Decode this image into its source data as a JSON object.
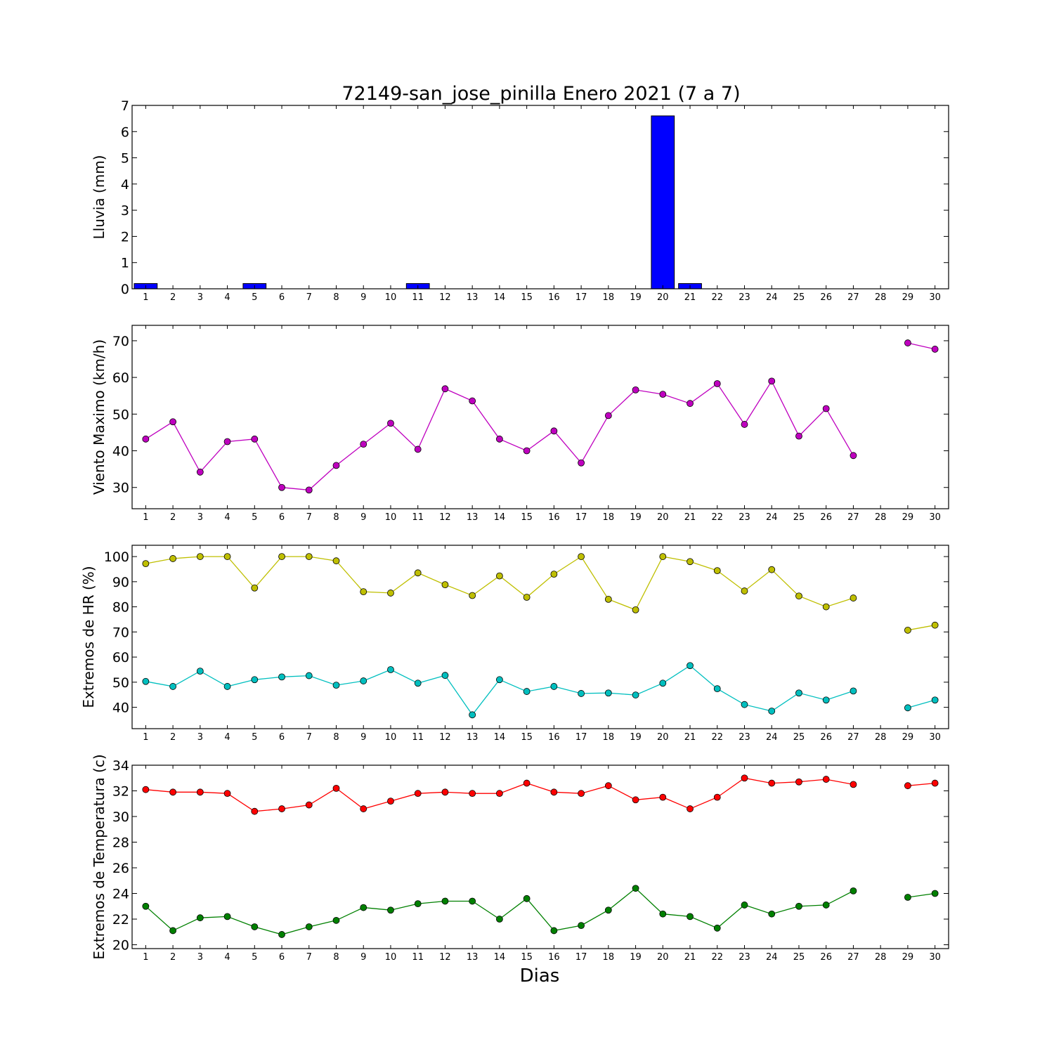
{
  "chart_data": {
    "title": "72149-san_jose_pinilla Enero 2021  (7 a 7)",
    "xlabel": "Dias",
    "days": [
      1,
      2,
      3,
      4,
      5,
      6,
      7,
      8,
      9,
      10,
      11,
      12,
      13,
      14,
      15,
      16,
      17,
      18,
      19,
      20,
      21,
      22,
      23,
      24,
      25,
      26,
      27,
      28,
      29,
      30
    ],
    "panels": [
      {
        "type": "bar",
        "ylabel": "Lluvia (mm)",
        "ylim": [
          0,
          7
        ],
        "yticks": [
          0,
          1,
          2,
          3,
          4,
          5,
          6,
          7
        ],
        "series": [
          {
            "color": "#0000ff",
            "values": [
              0.2,
              0,
              0,
              0,
              0.2,
              0,
              0,
              0,
              0,
              0,
              0.2,
              0,
              0,
              0,
              0,
              0,
              0,
              0,
              0,
              6.6,
              0.2,
              0,
              0,
              0,
              0,
              0,
              0,
              0,
              0,
              0
            ]
          }
        ]
      },
      {
        "type": "line",
        "ylabel": "Viento Maximo (km/h)",
        "ylim": [
          24.2,
          74.2
        ],
        "yticks": [
          30,
          40,
          50,
          60,
          70
        ],
        "series": [
          {
            "color": "#bf00bf",
            "values": [
              43.2,
              47.9,
              34.2,
              42.5,
              43.2,
              30.0,
              29.3,
              36.0,
              41.8,
              47.5,
              40.4,
              56.9,
              53.6,
              43.2,
              40.0,
              45.4,
              36.7,
              49.6,
              56.6,
              55.4,
              52.9,
              58.3,
              47.2,
              59.0,
              44.0,
              51.5,
              38.7,
              null,
              69.4,
              67.7
            ]
          }
        ]
      },
      {
        "type": "line",
        "ylabel": "Extremos de HR (%)",
        "ylim": [
          31.5,
          104.5
        ],
        "yticks": [
          40,
          50,
          60,
          70,
          80,
          90,
          100
        ],
        "series": [
          {
            "color": "#bfbf00",
            "values": [
              97.2,
              99.2,
              100,
              100,
              87.5,
              100,
              100,
              98.3,
              86.0,
              85.5,
              93.5,
              88.8,
              84.5,
              92.3,
              83.8,
              93.0,
              100,
              83.0,
              78.8,
              100,
              98.0,
              94.4,
              86.3,
              94.8,
              84.3,
              80.0,
              83.5,
              null,
              70.7,
              72.7
            ]
          },
          {
            "color": "#00bfbf",
            "values": [
              50.3,
              48.3,
              54.4,
              48.3,
              51.0,
              52.1,
              52.6,
              48.8,
              50.5,
              55.0,
              49.6,
              52.7,
              37.0,
              51.0,
              46.3,
              48.3,
              45.5,
              45.7,
              44.9,
              49.6,
              56.6,
              47.4,
              41.1,
              38.5,
              45.7,
              42.9,
              46.5,
              null,
              39.8,
              42.9
            ]
          }
        ]
      },
      {
        "type": "line",
        "ylabel": "Extremos de Temperatura (c)",
        "ylim": [
          19.7,
          34
        ],
        "yticks": [
          20,
          22,
          24,
          26,
          28,
          30,
          32,
          34
        ],
        "series": [
          {
            "color": "#ff0000",
            "values": [
              32.1,
              31.9,
              31.9,
              31.8,
              30.4,
              30.6,
              30.9,
              32.2,
              30.6,
              31.2,
              31.8,
              31.9,
              31.8,
              31.8,
              32.6,
              31.9,
              31.8,
              32.4,
              31.3,
              31.5,
              30.6,
              31.5,
              33.0,
              32.6,
              32.7,
              32.9,
              32.5,
              null,
              32.4,
              32.6
            ]
          },
          {
            "color": "#008000",
            "values": [
              23.0,
              21.1,
              22.1,
              22.2,
              21.4,
              20.8,
              21.4,
              21.9,
              22.9,
              22.7,
              23.2,
              23.4,
              23.4,
              22.0,
              23.6,
              21.1,
              21.5,
              22.7,
              24.4,
              22.4,
              22.2,
              21.3,
              23.1,
              22.4,
              23.0,
              23.1,
              24.2,
              null,
              23.7,
              24.0
            ]
          }
        ]
      }
    ]
  }
}
